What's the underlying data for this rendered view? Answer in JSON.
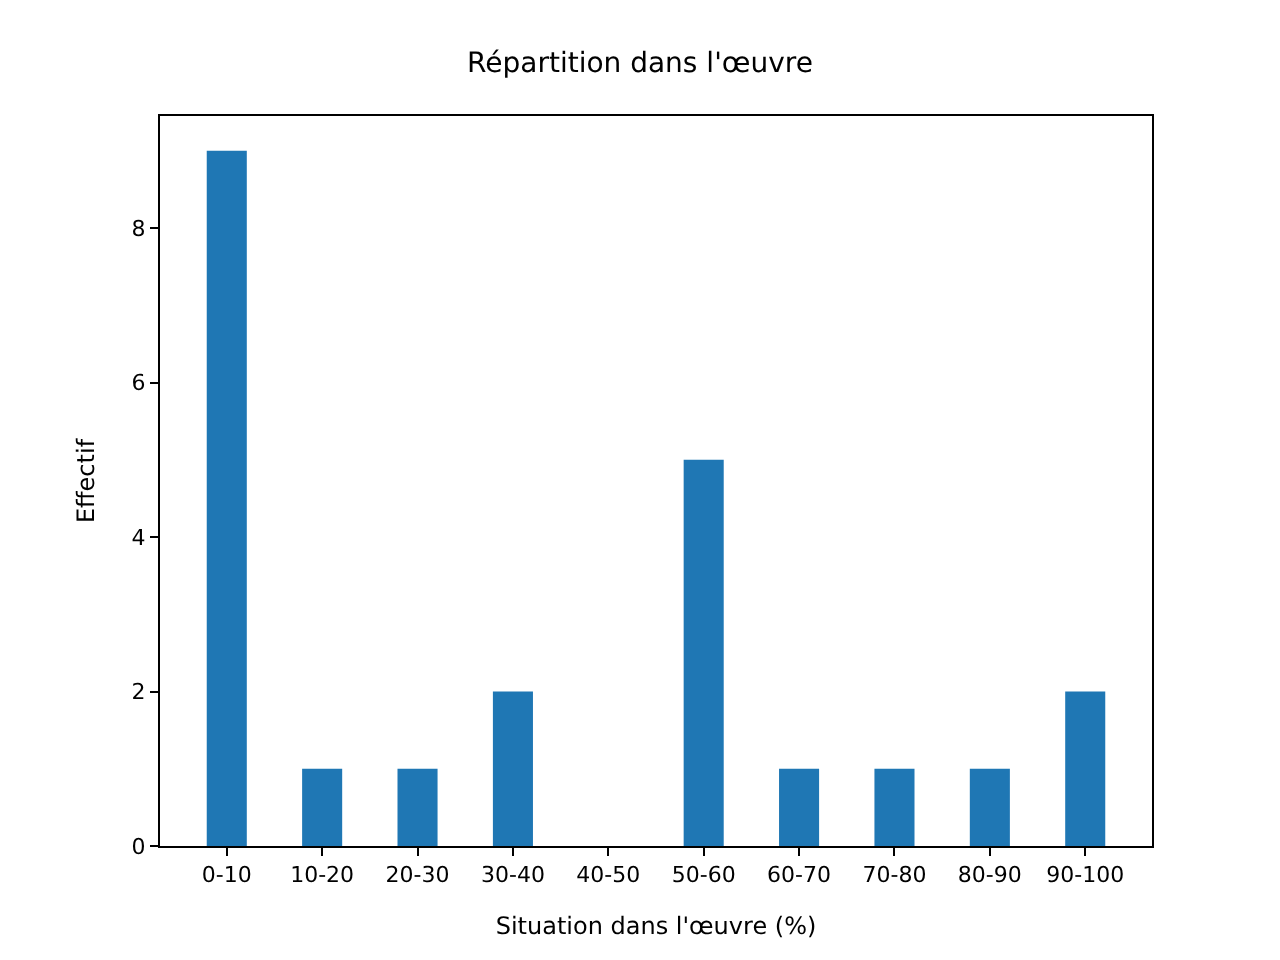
{
  "chart_data": {
    "type": "bar",
    "title": "Répartition dans l'œuvre",
    "xlabel": "Situation dans l'œuvre (%)",
    "ylabel": "Effectif",
    "categories": [
      "0-10",
      "10-20",
      "20-30",
      "30-40",
      "40-50",
      "50-60",
      "60-70",
      "70-80",
      "80-90",
      "90-100"
    ],
    "values": [
      9,
      1,
      1,
      2,
      0,
      5,
      1,
      1,
      1,
      2
    ],
    "color": "#1f77b4",
    "ylim": [
      0,
      9.45
    ],
    "yticks": [
      0,
      2,
      4,
      6,
      8
    ]
  }
}
